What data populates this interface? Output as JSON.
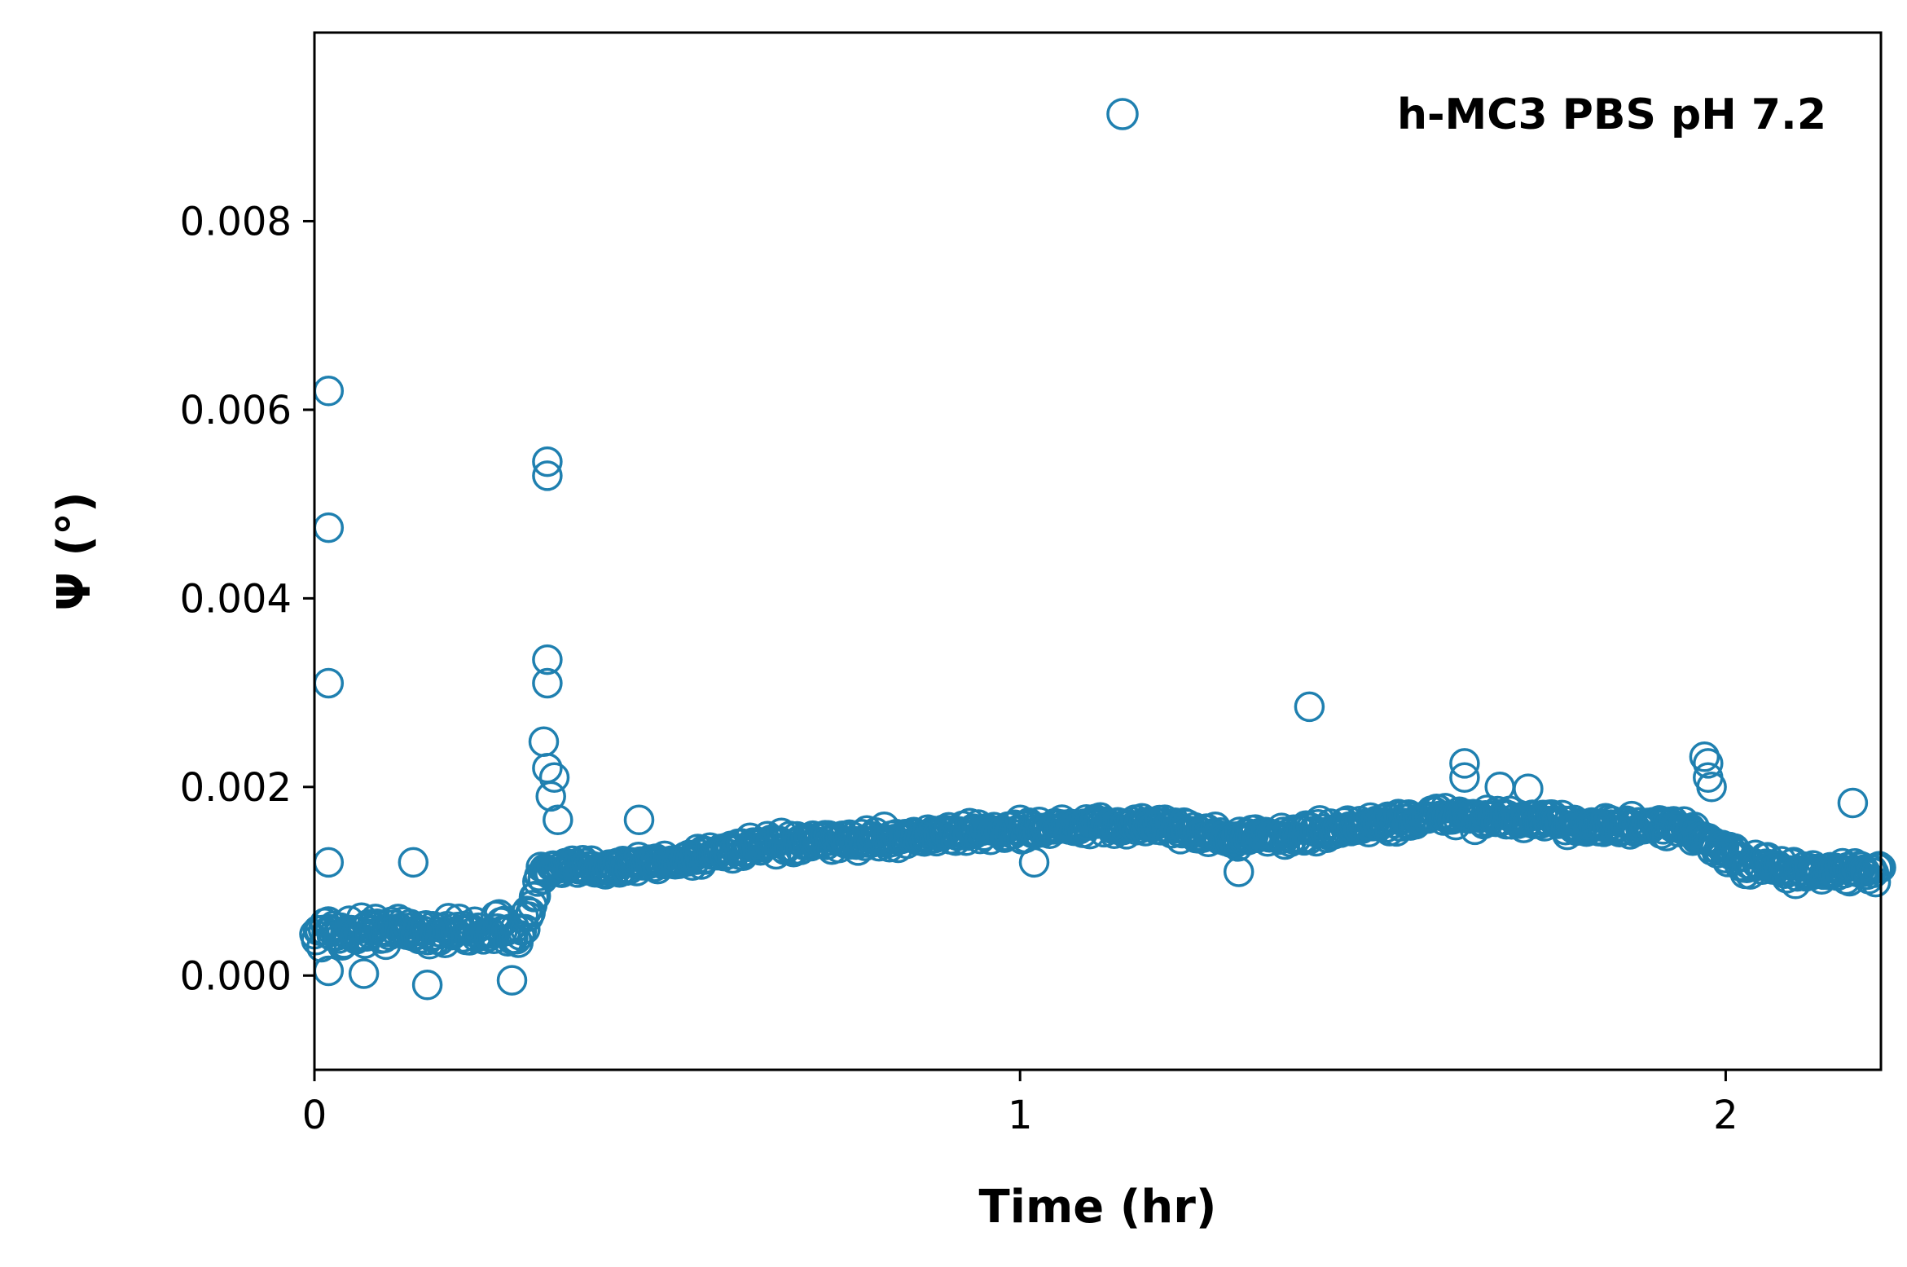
{
  "chart_data": {
    "type": "scatter",
    "xlabel": "Time (hr)",
    "ylabel": "Ψ (°)",
    "xlim": [
      0,
      2.22
    ],
    "ylim": [
      -0.001,
      0.01
    ],
    "xticks": [
      0,
      1,
      2
    ],
    "xtick_labels": [
      "0",
      "1",
      "2"
    ],
    "yticks": [
      0,
      0.002,
      0.004,
      0.006,
      0.008
    ],
    "ytick_labels": [
      "0.000",
      "0.002",
      "0.004",
      "0.006",
      "0.008"
    ],
    "grid": false,
    "legend_position": "top-right",
    "marker": "open-circle",
    "series": [
      {
        "name": "h-MC3 PBS pH 7.2",
        "color": "#1f80b0",
        "trend": [
          {
            "x": 0.0,
            "y": 0.00045
          },
          {
            "x": 0.1,
            "y": 0.00048
          },
          {
            "x": 0.2,
            "y": 0.00046
          },
          {
            "x": 0.3,
            "y": 0.0005
          },
          {
            "x": 0.32,
            "y": 0.0011
          },
          {
            "x": 0.4,
            "y": 0.00115
          },
          {
            "x": 0.5,
            "y": 0.0012
          },
          {
            "x": 0.6,
            "y": 0.00135
          },
          {
            "x": 0.8,
            "y": 0.00145
          },
          {
            "x": 1.0,
            "y": 0.00155
          },
          {
            "x": 1.2,
            "y": 0.0016
          },
          {
            "x": 1.3,
            "y": 0.00145
          },
          {
            "x": 1.4,
            "y": 0.0015
          },
          {
            "x": 1.6,
            "y": 0.0017
          },
          {
            "x": 1.8,
            "y": 0.0016
          },
          {
            "x": 1.95,
            "y": 0.00155
          },
          {
            "x": 2.02,
            "y": 0.0012
          },
          {
            "x": 2.1,
            "y": 0.0011
          },
          {
            "x": 2.22,
            "y": 0.0011
          }
        ],
        "outliers": [
          {
            "x": 0.02,
            "y": 0.0062
          },
          {
            "x": 0.02,
            "y": 0.00475
          },
          {
            "x": 0.02,
            "y": 0.0031
          },
          {
            "x": 0.02,
            "y": 0.0012
          },
          {
            "x": 0.14,
            "y": 0.0012
          },
          {
            "x": 0.33,
            "y": 0.00545
          },
          {
            "x": 0.33,
            "y": 0.0053
          },
          {
            "x": 0.33,
            "y": 0.00335
          },
          {
            "x": 0.33,
            "y": 0.0031
          },
          {
            "x": 0.325,
            "y": 0.00248
          },
          {
            "x": 0.33,
            "y": 0.0022
          },
          {
            "x": 0.34,
            "y": 0.0021
          },
          {
            "x": 0.335,
            "y": 0.0019
          },
          {
            "x": 0.345,
            "y": 0.00165
          },
          {
            "x": 0.46,
            "y": 0.00165
          },
          {
            "x": 1.41,
            "y": 0.00285
          },
          {
            "x": 1.63,
            "y": 0.00225
          },
          {
            "x": 1.63,
            "y": 0.0021
          },
          {
            "x": 1.68,
            "y": 0.002
          },
          {
            "x": 1.72,
            "y": 0.00198
          },
          {
            "x": 1.97,
            "y": 0.00232
          },
          {
            "x": 1.975,
            "y": 0.00225
          },
          {
            "x": 1.975,
            "y": 0.0021
          },
          {
            "x": 1.98,
            "y": 0.002
          },
          {
            "x": 2.18,
            "y": 0.00183
          },
          {
            "x": 0.16,
            "y": -0.0001
          },
          {
            "x": 0.28,
            "y": -5e-05
          },
          {
            "x": 0.07,
            "y": 2e-05
          },
          {
            "x": 0.02,
            "y": 5e-05
          },
          {
            "x": 1.02,
            "y": 0.0012
          },
          {
            "x": 1.31,
            "y": 0.0011
          }
        ]
      }
    ]
  }
}
